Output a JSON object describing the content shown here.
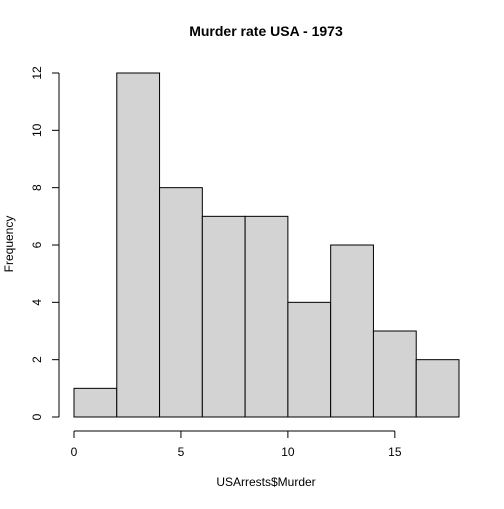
{
  "chart_data": {
    "type": "bar",
    "title": "Murder rate USA - 1973",
    "xlabel": "USArrests$Murder",
    "ylabel": "Frequency",
    "bins": [
      {
        "from": 0,
        "to": 2,
        "count": 1
      },
      {
        "from": 2,
        "to": 4,
        "count": 12
      },
      {
        "from": 4,
        "to": 6,
        "count": 8
      },
      {
        "from": 6,
        "to": 8,
        "count": 7
      },
      {
        "from": 8,
        "to": 10,
        "count": 7
      },
      {
        "from": 10,
        "to": 12,
        "count": 4
      },
      {
        "from": 12,
        "to": 14,
        "count": 6
      },
      {
        "from": 14,
        "to": 16,
        "count": 3
      },
      {
        "from": 16,
        "to": 18,
        "count": 2
      }
    ],
    "xlim": [
      0,
      18
    ],
    "ylim": [
      0,
      12
    ],
    "x_ticks": [
      "0",
      "5",
      "10",
      "15"
    ],
    "y_ticks": [
      "0",
      "2",
      "4",
      "6",
      "8",
      "10",
      "12"
    ],
    "bar_fill": "#d3d3d3",
    "bar_stroke": "#000000",
    "grid": false
  }
}
